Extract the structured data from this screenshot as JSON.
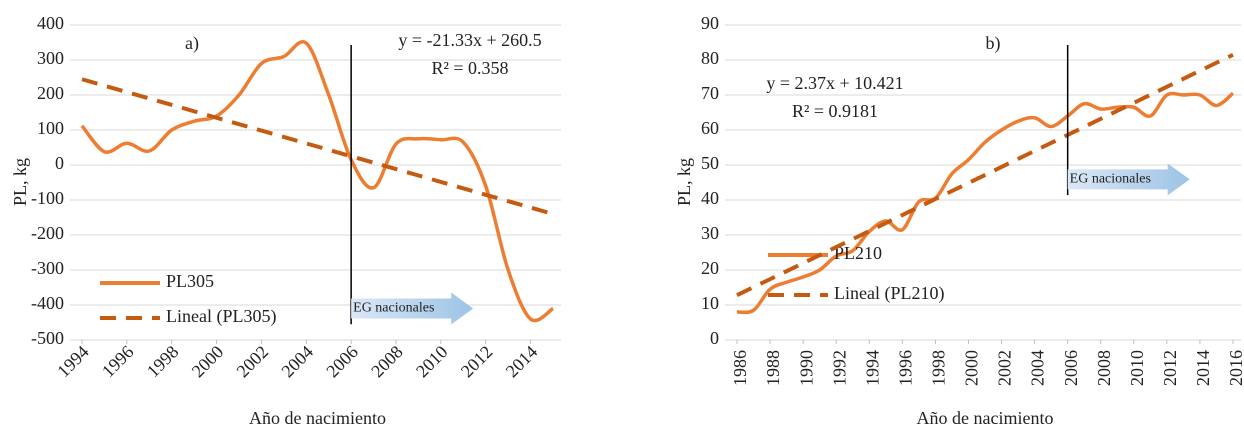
{
  "chart_data": [
    {
      "type": "line",
      "label": "a)",
      "x_label": "Año de nacimiento",
      "y_label": "PL, kg",
      "x": [
        1994,
        1995,
        1996,
        1997,
        1998,
        1999,
        2000,
        2001,
        2002,
        2003,
        2004,
        2005,
        2006,
        2007,
        2008,
        2009,
        2010,
        2011,
        2012,
        2013,
        2014,
        2015
      ],
      "xlim": [
        1994,
        2015
      ],
      "xticks": [
        1994,
        1996,
        1998,
        2000,
        2002,
        2004,
        2006,
        2008,
        2010,
        2012,
        2014
      ],
      "ylim": [
        -500,
        400
      ],
      "yticks": [
        -500,
        -400,
        -300,
        -200,
        -100,
        0,
        100,
        200,
        300,
        400
      ],
      "grid": true,
      "series": [
        {
          "name": "PL305",
          "color": "#ed7d31",
          "style": "solid",
          "values": [
            112,
            38,
            62,
            40,
            100,
            125,
            140,
            200,
            290,
            310,
            348,
            200,
            15,
            -65,
            60,
            75,
            72,
            65,
            -60,
            -300,
            -440,
            -410
          ]
        },
        {
          "name": "Lineal (PL305)",
          "color": "#c55a11",
          "style": "dashed",
          "x": [
            1994,
            2015
          ],
          "values": [
            245,
            -140
          ]
        }
      ],
      "equation": [
        "y = -21.33x + 260.5",
        "R² = 0.358"
      ],
      "vline_x": 2006,
      "arrow_text": "EG nacionales"
    },
    {
      "type": "line",
      "label": "b)",
      "x_label": "Año de nacimiento",
      "y_label": "PL, kg",
      "x": [
        1986,
        1987,
        1988,
        1989,
        1990,
        1991,
        1992,
        1993,
        1994,
        1995,
        1996,
        1997,
        1998,
        1999,
        2000,
        2001,
        2002,
        2003,
        2004,
        2005,
        2006,
        2007,
        2008,
        2009,
        2010,
        2011,
        2012,
        2013,
        2014,
        2015,
        2016
      ],
      "xlim": [
        1986,
        2016
      ],
      "xticks": [
        1986,
        1988,
        1990,
        1992,
        1994,
        1996,
        1998,
        2000,
        2002,
        2004,
        2006,
        2008,
        2010,
        2012,
        2014,
        2016
      ],
      "ylim": [
        0,
        90
      ],
      "yticks": [
        0,
        10,
        20,
        30,
        40,
        50,
        60,
        70,
        80,
        90
      ],
      "grid": true,
      "series": [
        {
          "name": "PL210",
          "color": "#ed7d31",
          "style": "solid",
          "values": [
            8,
            8.5,
            14.5,
            16.5,
            18,
            20,
            24,
            25.5,
            31,
            34,
            31.5,
            39.5,
            40.5,
            47.5,
            51.5,
            56.5,
            60,
            62.5,
            63.5,
            61,
            64,
            67.5,
            66,
            66.5,
            66.5,
            64,
            70,
            70,
            70,
            67,
            70.5
          ]
        },
        {
          "name": "Lineal (PL210)",
          "color": "#c55a11",
          "style": "dashed",
          "x": [
            1986,
            2016
          ],
          "values": [
            12.8,
            81.5
          ]
        }
      ],
      "equation": [
        "y = 2.37x + 10.421",
        "R² = 0.9181"
      ],
      "vline_x": 2006,
      "arrow_text": "EG nacionales"
    }
  ]
}
